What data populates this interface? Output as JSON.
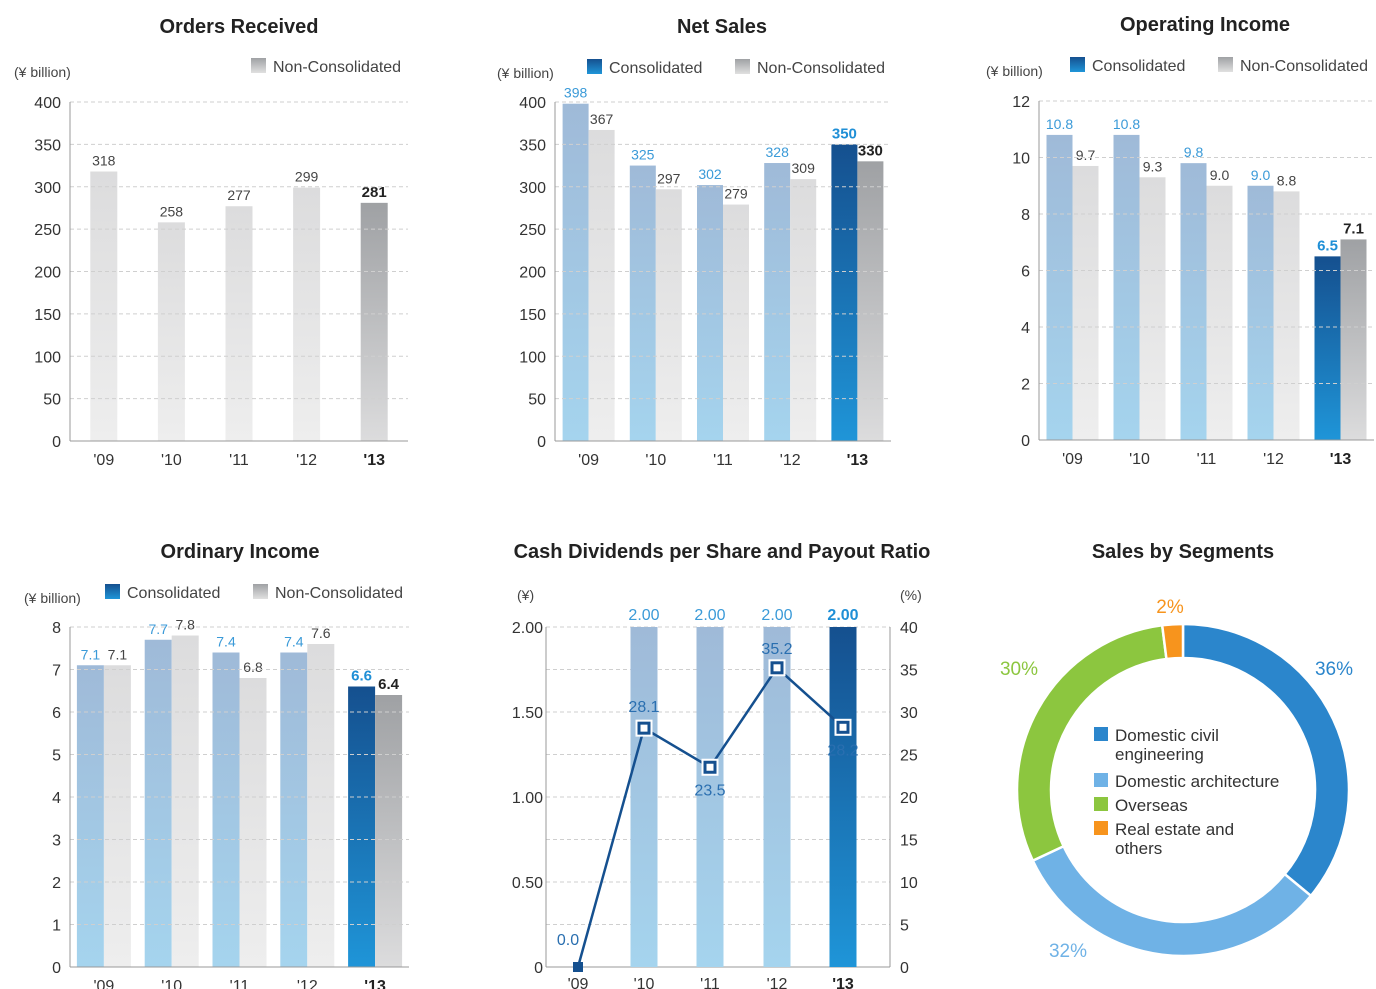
{
  "colors": {
    "consolidated_light": "#a9c6e2",
    "consolidated_dark": "#15508f",
    "consolidated_dark_bottom": "#1f8fd6",
    "non_consolidated_light": "#e5e5e5",
    "non_consolidated_dark": "#a6a8ab",
    "grid": "#cfcfcf",
    "label_blue": "#3a9ad8"
  },
  "chart_data": [
    {
      "id": "orders",
      "type": "bar",
      "title": "Orders Received",
      "unit_label": "(¥ billion)",
      "legend": [
        "Non-Consolidated"
      ],
      "categories": [
        "'09",
        "'10",
        "'11",
        "'12",
        "'13"
      ],
      "highlight_category": "'13",
      "series": [
        {
          "name": "Non-Consolidated",
          "values": [
            318,
            258,
            277,
            299,
            281
          ]
        }
      ],
      "ylim": [
        0,
        400
      ],
      "yticks": [
        "0",
        "50",
        "100",
        "150",
        "200",
        "250",
        "300",
        "350",
        "400"
      ],
      "grid": true
    },
    {
      "id": "netsales",
      "type": "bar",
      "title": "Net Sales",
      "unit_label": "(¥ billion)",
      "legend": [
        "Consolidated",
        "Non-Consolidated"
      ],
      "categories": [
        "'09",
        "'10",
        "'11",
        "'12",
        "'13"
      ],
      "highlight_category": "'13",
      "series": [
        {
          "name": "Consolidated",
          "values": [
            398,
            325,
            302,
            328,
            350
          ]
        },
        {
          "name": "Non-Consolidated",
          "values": [
            367,
            297,
            279,
            309,
            330
          ]
        }
      ],
      "ylim": [
        0,
        400
      ],
      "yticks": [
        "0",
        "50",
        "100",
        "150",
        "200",
        "250",
        "300",
        "350",
        "400"
      ],
      "grid": true
    },
    {
      "id": "opincome",
      "type": "bar",
      "title": "Operating Income",
      "unit_label": "(¥ billion)",
      "legend": [
        "Consolidated",
        "Non-Consolidated"
      ],
      "categories": [
        "'09",
        "'10",
        "'11",
        "'12",
        "'13"
      ],
      "highlight_category": "'13",
      "series": [
        {
          "name": "Consolidated",
          "values": [
            10.8,
            10.8,
            9.8,
            9.0,
            6.5
          ],
          "labels": [
            "10.8",
            "10.8",
            "9.8",
            "9.0",
            "6.5"
          ]
        },
        {
          "name": "Non-Consolidated",
          "values": [
            9.7,
            9.3,
            9.0,
            8.8,
            7.1
          ],
          "labels": [
            "9.7",
            "9.3",
            "9.0",
            "8.8",
            "7.1"
          ]
        }
      ],
      "ylim": [
        0,
        12
      ],
      "yticks": [
        "0",
        "2",
        "4",
        "6",
        "8",
        "10",
        "12"
      ],
      "grid": true
    },
    {
      "id": "ordincome",
      "type": "bar",
      "title": "Ordinary Income",
      "unit_label": "(¥ billion)",
      "legend": [
        "Consolidated",
        "Non-Consolidated"
      ],
      "categories": [
        "'09",
        "'10",
        "'11",
        "'12",
        "'13"
      ],
      "highlight_category": "'13",
      "series": [
        {
          "name": "Consolidated",
          "values": [
            7.1,
            7.7,
            7.4,
            7.4,
            6.6
          ],
          "labels": [
            "7.1",
            "7.7",
            "7.4",
            "7.4",
            "6.6"
          ]
        },
        {
          "name": "Non-Consolidated",
          "values": [
            7.1,
            7.8,
            6.8,
            7.6,
            6.4
          ],
          "labels": [
            "7.1",
            "7.8",
            "6.8",
            "7.6",
            "6.4"
          ]
        }
      ],
      "ylim": [
        0,
        8
      ],
      "yticks": [
        "0",
        "1",
        "2",
        "3",
        "4",
        "5",
        "6",
        "7",
        "8"
      ],
      "grid": true
    },
    {
      "id": "dividends",
      "type": "bar",
      "title": "Cash Dividends per Share and Payout Ratio",
      "unit_label_left": "(¥)",
      "unit_label_right": "(%)",
      "categories": [
        "'09",
        "'10",
        "'11",
        "'12",
        "'13"
      ],
      "highlight_category": "'13",
      "bars": {
        "values": [
          0,
          2.0,
          2.0,
          2.0,
          2.0
        ],
        "labels": [
          "",
          "2.00",
          "2.00",
          "2.00",
          "2.00"
        ]
      },
      "line": {
        "values": [
          0.0,
          28.1,
          23.5,
          35.2,
          28.2
        ],
        "labels": [
          "0.0",
          "28.1",
          "23.5",
          "35.2",
          "28.2"
        ]
      },
      "ylim_left": [
        0,
        2
      ],
      "yticks_left": [
        "0",
        "0.50",
        "1.00",
        "1.50",
        "2.00"
      ],
      "ylim_right": [
        0,
        40
      ],
      "yticks_right": [
        "0",
        "5",
        "10",
        "15",
        "20",
        "25",
        "30",
        "35",
        "40"
      ],
      "grid": true
    },
    {
      "id": "segments",
      "type": "pie",
      "title": "Sales by Segments",
      "slices": [
        {
          "name": "Domestic civil engineering",
          "value": 36,
          "label": "36%",
          "color": "#2b86cc",
          "legend_lines": [
            "Domestic civil",
            "engineering"
          ]
        },
        {
          "name": "Domestic architecture",
          "value": 32,
          "label": "32%",
          "color": "#6fb2e6",
          "legend_lines": [
            "Domestic architecture"
          ]
        },
        {
          "name": "Overseas",
          "value": 30,
          "label": "30%",
          "color": "#8cc63f",
          "legend_lines": [
            "Overseas"
          ]
        },
        {
          "name": "Real estate and others",
          "value": 2,
          "label": "2%",
          "color": "#f7941d",
          "legend_lines": [
            "Real estate and",
            "others"
          ]
        }
      ]
    }
  ]
}
